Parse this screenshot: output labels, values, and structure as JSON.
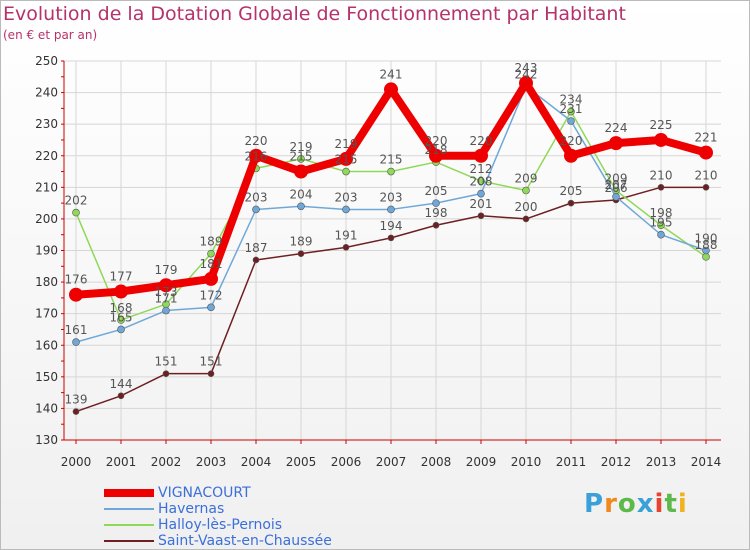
{
  "title": "Evolution de la Dotation Globale de Fonctionnement par Habitant",
  "subtitle": "(en € et par an)",
  "logo": {
    "text": "Proxiti",
    "colors": [
      "#3aa0d8",
      "#f08a1e",
      "#5db94a",
      "#3aa0d8",
      "#e8432f",
      "#5db94a",
      "#f0b21e"
    ]
  },
  "chart_data": {
    "type": "line",
    "x": [
      2000,
      2001,
      2002,
      2003,
      2004,
      2005,
      2006,
      2007,
      2008,
      2009,
      2010,
      2011,
      2012,
      2013,
      2014
    ],
    "ylim": [
      130,
      250
    ],
    "yticks": [
      130,
      140,
      150,
      160,
      170,
      180,
      190,
      200,
      210,
      220,
      230,
      240,
      250
    ],
    "grid": true,
    "legend_position": "bottom",
    "series": [
      {
        "name": "Saint-Vaast-en-Chaussée",
        "color": "#6e1f22",
        "width": 1.5,
        "marker": 3,
        "values": [
          139,
          144,
          151,
          151,
          187,
          189,
          191,
          194,
          198,
          201,
          200,
          205,
          206,
          210,
          210
        ]
      },
      {
        "name": "Halloy-lès-Pernois",
        "color": "#8ed957",
        "width": 1.5,
        "marker": 3.5,
        "values": [
          202,
          168,
          173,
          189,
          216,
          219,
          215,
          215,
          218,
          212,
          209,
          234,
          209,
          198,
          188
        ]
      },
      {
        "name": "Havernas",
        "color": "#6fa8d8",
        "width": 1.5,
        "marker": 3.5,
        "values": [
          161,
          165,
          171,
          172,
          203,
          204,
          203,
          203,
          205,
          208,
          242,
          231,
          207,
          195,
          190
        ]
      },
      {
        "name": "VIGNACOURT",
        "color": "#ee0000",
        "width": 8,
        "marker": 7,
        "values": [
          176,
          177,
          179,
          181,
          220,
          215,
          219,
          241,
          220,
          220,
          243,
          220,
          224,
          225,
          221
        ]
      }
    ],
    "data_labels": [
      {
        "series": "VIGNACOURT",
        "values": [
          "176",
          "177",
          "179",
          "181",
          "220",
          "215",
          "219",
          "241",
          "220",
          "220",
          "243",
          "220",
          "224",
          "225",
          "221"
        ]
      },
      {
        "series": "Havernas",
        "values": [
          "161",
          "165",
          "171",
          "172",
          "203",
          "204",
          "203",
          "203",
          "205",
          "208",
          "242",
          "231",
          "207",
          "195",
          "190"
        ]
      },
      {
        "series": "Halloy-lès-Pernois",
        "values": [
          "202",
          "168",
          "173",
          "189",
          "216",
          "219",
          "215",
          "215",
          "218",
          "212",
          "209",
          "234",
          "209",
          "198",
          "188"
        ]
      },
      {
        "series": "Saint-Vaast-en-Chaussée",
        "values": [
          "139",
          "144",
          "151",
          "151",
          "187",
          "189",
          "191",
          "194",
          "198",
          "201",
          "200",
          "205",
          "206",
          "210",
          "210"
        ]
      }
    ]
  },
  "legend": [
    {
      "label": "VIGNACOURT",
      "color": "#ee0000",
      "thick": 8
    },
    {
      "label": "Havernas",
      "color": "#6fa8d8",
      "thick": 2
    },
    {
      "label": "Halloy-lès-Pernois",
      "color": "#8ed957",
      "thick": 2
    },
    {
      "label": "Saint-Vaast-en-Chaussée",
      "color": "#6e1f22",
      "thick": 2
    }
  ]
}
